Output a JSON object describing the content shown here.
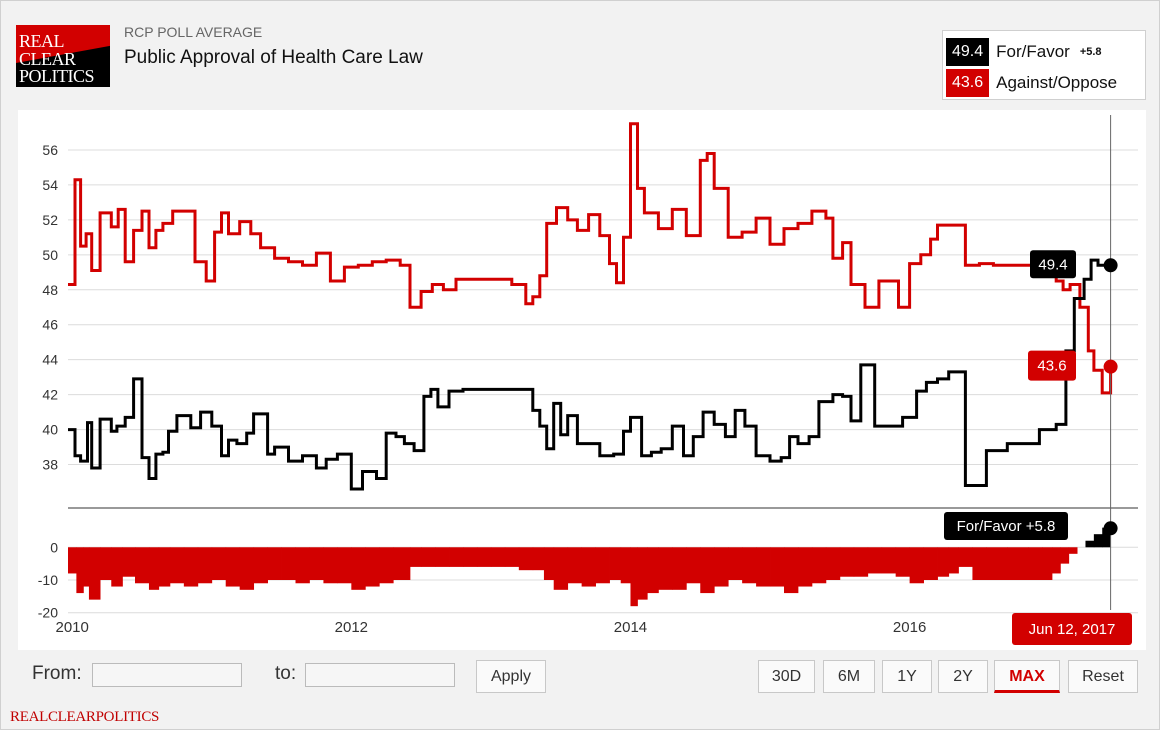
{
  "header": {
    "logo_lines": [
      "REAL",
      "CLEAR",
      "POLITICS"
    ],
    "kicker": "RCP POLL AVERAGE",
    "title": "Public Approval of Health Care Law"
  },
  "legend": {
    "favor": {
      "value": "49.4",
      "name": "For/Favor",
      "diff": "+5.8",
      "color": "#000000"
    },
    "oppose": {
      "value": "43.6",
      "name": "Against/Oppose",
      "color": "#d20000"
    }
  },
  "callouts": {
    "favor_value": "49.4",
    "oppose_value": "43.6",
    "spread": "For/Favor +5.8",
    "date": "Jun 12, 2017"
  },
  "controls": {
    "from_label": "From:",
    "to_label": "to:",
    "from_value": "",
    "to_value": "",
    "apply": "Apply",
    "ranges": [
      "30D",
      "6M",
      "1Y",
      "2Y",
      "MAX"
    ],
    "active_range": "MAX",
    "reset": "Reset"
  },
  "footer": "REALCLEARPOLITICS",
  "chart_data": {
    "type": "line",
    "x_ticks": [
      "2010",
      "2012",
      "2014",
      "2016"
    ],
    "main_y_ticks": [
      56,
      54,
      52,
      50,
      48,
      46,
      44,
      42,
      40,
      38
    ],
    "main_ylim": [
      35.8,
      58
    ],
    "spread_y_ticks": [
      0,
      -10,
      -20
    ],
    "spread_ylim": [
      -21,
      12
    ],
    "x_range": [
      2009.97,
      2017.45
    ],
    "series": [
      {
        "name": "For/Favor",
        "color": "#000000",
        "x": [
          2009.97,
          2010.02,
          2010.06,
          2010.11,
          2010.14,
          2010.2,
          2010.28,
          2010.32,
          2010.38,
          2010.44,
          2010.5,
          2010.55,
          2010.6,
          2010.65,
          2010.69,
          2010.75,
          2010.85,
          2010.92,
          2011.0,
          2011.07,
          2011.12,
          2011.18,
          2011.25,
          2011.3,
          2011.4,
          2011.45,
          2011.55,
          2011.65,
          2011.75,
          2011.82,
          2011.9,
          2012.0,
          2012.08,
          2012.18,
          2012.25,
          2012.32,
          2012.38,
          2012.45,
          2012.52,
          2012.57,
          2012.62,
          2012.7,
          2012.8,
          2012.9,
          2013.02,
          2013.12,
          2013.22,
          2013.3,
          2013.35,
          2013.4,
          2013.45,
          2013.5,
          2013.55,
          2013.62,
          2013.7,
          2013.78,
          2013.88,
          2013.95,
          2014.0,
          2014.08,
          2014.15,
          2014.22,
          2014.3,
          2014.38,
          2014.45,
          2014.52,
          2014.6,
          2014.68,
          2014.75,
          2014.82,
          2014.9,
          2015.0,
          2015.08,
          2015.14,
          2015.2,
          2015.28,
          2015.35,
          2015.45,
          2015.52,
          2015.58,
          2015.65,
          2015.75,
          2015.8,
          2015.88,
          2015.95,
          2016.05,
          2016.12,
          2016.2,
          2016.28,
          2016.32,
          2016.4,
          2016.55,
          2016.7,
          2016.8,
          2016.88,
          2016.93,
          2017.0,
          2017.05,
          2017.12,
          2017.18,
          2017.25,
          2017.3,
          2017.35,
          2017.44
        ],
        "y": [
          40.0,
          38.5,
          38.2,
          40.4,
          37.8,
          40.6,
          39.9,
          40.2,
          40.7,
          42.9,
          38.4,
          37.2,
          38.6,
          38.7,
          39.9,
          40.8,
          40.1,
          41.0,
          40.2,
          38.5,
          39.4,
          39.2,
          39.8,
          40.9,
          38.6,
          39.0,
          38.2,
          38.5,
          37.8,
          38.3,
          38.6,
          36.6,
          37.6,
          37.2,
          39.8,
          39.6,
          39.2,
          38.8,
          41.9,
          42.3,
          41.3,
          42.2,
          42.3,
          42.3,
          42.3,
          42.3,
          42.3,
          41.1,
          40.2,
          38.9,
          41.5,
          39.7,
          40.8,
          39.2,
          39.2,
          38.5,
          38.6,
          39.9,
          40.7,
          38.5,
          38.7,
          38.9,
          40.2,
          38.5,
          39.6,
          41.0,
          40.3,
          39.6,
          41.1,
          40.2,
          38.5,
          38.2,
          38.4,
          39.6,
          39.2,
          39.6,
          41.6,
          42.0,
          41.9,
          40.5,
          43.7,
          40.2,
          40.2,
          40.2,
          40.7,
          42.2,
          42.7,
          42.9,
          43.3,
          43.3,
          36.8,
          38.8,
          39.2,
          39.2,
          39.2,
          40.0,
          40.0,
          40.3,
          44.5,
          47.5,
          48.6,
          49.7,
          49.4,
          49.4
        ]
      },
      {
        "name": "Against/Oppose",
        "color": "#d20000",
        "x": [
          2009.97,
          2010.02,
          2010.06,
          2010.1,
          2010.14,
          2010.2,
          2010.28,
          2010.33,
          2010.38,
          2010.44,
          2010.5,
          2010.55,
          2010.6,
          2010.65,
          2010.72,
          2010.8,
          2010.88,
          2010.96,
          2011.02,
          2011.07,
          2011.12,
          2011.2,
          2011.28,
          2011.35,
          2011.45,
          2011.55,
          2011.65,
          2011.75,
          2011.85,
          2011.95,
          2012.05,
          2012.15,
          2012.25,
          2012.35,
          2012.42,
          2012.5,
          2012.58,
          2012.66,
          2012.75,
          2012.85,
          2012.95,
          2013.05,
          2013.15,
          2013.25,
          2013.3,
          2013.35,
          2013.4,
          2013.47,
          2013.55,
          2013.62,
          2013.7,
          2013.78,
          2013.85,
          2013.9,
          2013.95,
          2014.0,
          2014.05,
          2014.1,
          2014.2,
          2014.3,
          2014.4,
          2014.5,
          2014.55,
          2014.6,
          2014.7,
          2014.8,
          2014.9,
          2015.0,
          2015.1,
          2015.2,
          2015.3,
          2015.4,
          2015.45,
          2015.52,
          2015.58,
          2015.68,
          2015.78,
          2015.85,
          2015.92,
          2016.0,
          2016.08,
          2016.15,
          2016.2,
          2016.3,
          2016.4,
          2016.5,
          2016.6,
          2016.7,
          2016.8,
          2016.9,
          2017.0,
          2017.05,
          2017.1,
          2017.15,
          2017.22,
          2017.28,
          2017.32,
          2017.38,
          2017.44
        ],
        "y": [
          48.3,
          54.3,
          50.5,
          51.2,
          49.1,
          52.4,
          51.6,
          52.6,
          49.6,
          51.4,
          52.5,
          50.4,
          51.4,
          51.8,
          52.5,
          52.5,
          49.6,
          48.5,
          51.3,
          52.4,
          51.2,
          51.9,
          51.2,
          50.4,
          49.8,
          49.6,
          49.4,
          50.1,
          48.5,
          49.3,
          49.4,
          49.6,
          49.7,
          49.4,
          47.0,
          47.9,
          48.3,
          48.0,
          48.6,
          48.6,
          48.6,
          48.6,
          48.3,
          47.2,
          47.6,
          48.8,
          51.8,
          52.7,
          52.0,
          51.4,
          52.3,
          51.1,
          49.5,
          48.4,
          51.0,
          57.5,
          53.8,
          52.4,
          51.5,
          52.6,
          51.1,
          55.4,
          55.8,
          53.8,
          51.0,
          51.3,
          52.1,
          50.6,
          51.5,
          51.8,
          52.5,
          52.1,
          49.8,
          50.7,
          48.3,
          47.0,
          48.5,
          48.5,
          47.0,
          49.5,
          50.0,
          50.9,
          51.7,
          51.7,
          49.4,
          49.5,
          49.4,
          49.4,
          49.4,
          49.4,
          49.4,
          48.5,
          48.0,
          48.3,
          47.0,
          44.5,
          43.4,
          42.1,
          43.6
        ]
      }
    ],
    "spread": {
      "name": "For/Favor",
      "color_positive": "#000000",
      "color_negative": "#d20000",
      "x": [
        2009.97,
        2010.03,
        2010.08,
        2010.12,
        2010.2,
        2010.28,
        2010.36,
        2010.45,
        2010.55,
        2010.62,
        2010.7,
        2010.8,
        2010.9,
        2011.0,
        2011.1,
        2011.2,
        2011.3,
        2011.4,
        2011.5,
        2011.6,
        2011.7,
        2011.8,
        2011.9,
        2012.0,
        2012.1,
        2012.2,
        2012.3,
        2012.42,
        2012.5,
        2012.6,
        2012.7,
        2012.8,
        2012.9,
        2013.0,
        2013.1,
        2013.2,
        2013.3,
        2013.38,
        2013.45,
        2013.55,
        2013.65,
        2013.75,
        2013.85,
        2013.93,
        2014.0,
        2014.05,
        2014.12,
        2014.2,
        2014.3,
        2014.4,
        2014.5,
        2014.6,
        2014.7,
        2014.8,
        2014.9,
        2015.0,
        2015.1,
        2015.2,
        2015.3,
        2015.4,
        2015.5,
        2015.6,
        2015.7,
        2015.8,
        2015.9,
        2016.0,
        2016.1,
        2016.2,
        2016.28,
        2016.35,
        2016.45,
        2016.55,
        2016.7,
        2016.85,
        2016.95,
        2017.02,
        2017.08,
        2017.14,
        2017.2,
        2017.26,
        2017.32,
        2017.38,
        2017.44
      ],
      "y": [
        -8,
        -14,
        -12,
        -16,
        -10,
        -12,
        -9,
        -11,
        -13,
        -12,
        -11,
        -12,
        -11,
        -10,
        -12,
        -13,
        -11,
        -10,
        -10,
        -11,
        -10,
        -11,
        -11,
        -13,
        -12,
        -11,
        -10,
        -6,
        -6,
        -6,
        -6,
        -6,
        -6,
        -6,
        -6,
        -7,
        -7,
        -10,
        -13,
        -11,
        -12,
        -11,
        -10,
        -11,
        -18,
        -16,
        -14,
        -13,
        -13,
        -11,
        -14,
        -12,
        -10,
        -11,
        -12,
        -12,
        -14,
        -12,
        -11,
        -10,
        -9,
        -9,
        -8,
        -8,
        -9,
        -11,
        -10,
        -9,
        -8,
        -6,
        -10,
        -10,
        -10,
        -10,
        -10,
        -8,
        -5,
        -2,
        0,
        2,
        4,
        6,
        5.8
      ]
    }
  }
}
